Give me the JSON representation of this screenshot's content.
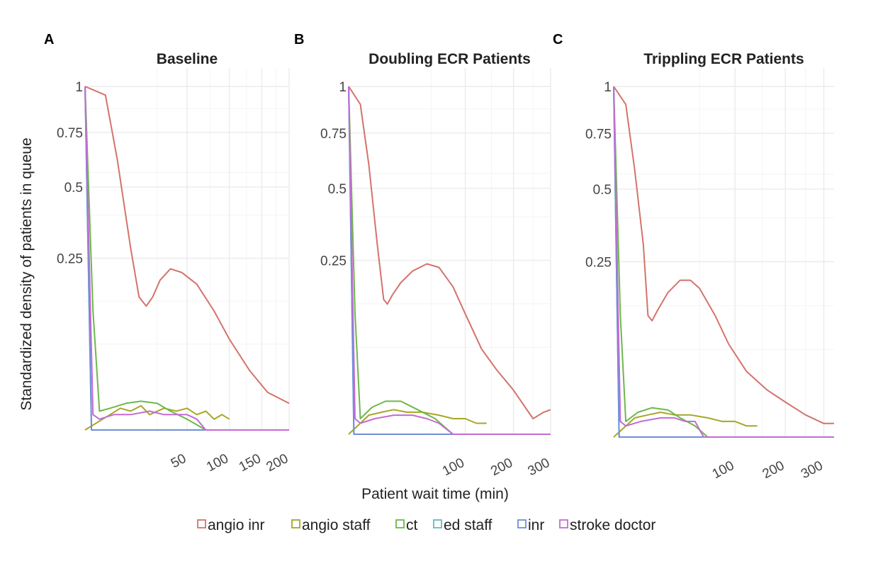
{
  "figure": {
    "xlabel": "Patient wait time (min)",
    "ylabel": "Standardized density of patients in queue"
  },
  "legend": [
    {
      "name": "angio inr",
      "color": "#d4736b"
    },
    {
      "name": "angio staff",
      "color": "#a8a626"
    },
    {
      "name": "ct",
      "color": "#6cb84a"
    },
    {
      "name": "ed staff",
      "color": "#62bcbd"
    },
    {
      "name": "inr",
      "color": "#6e8fd8"
    },
    {
      "name": "stroke doctor",
      "color": "#c46bd4"
    }
  ],
  "chart_data": [
    {
      "type": "line",
      "letter": "A",
      "title": "Baseline",
      "x_scale": "sqrt",
      "xlim": [
        0,
        200
      ],
      "xticks": [
        50,
        100,
        150,
        200
      ],
      "xtick_labels": [
        "50",
        "100",
        "150",
        "200"
      ],
      "y_scale": "sqrt",
      "ylim": [
        0,
        1
      ],
      "yticks": [
        0.25,
        0.5,
        0.75,
        1
      ],
      "ytick_labels": [
        "0.25",
        "0.5",
        "0.75",
        "1"
      ],
      "grid": true,
      "series": [
        {
          "name": "angio inr",
          "x": [
            0,
            2,
            5,
            10,
            14,
            18,
            22,
            27,
            35,
            45,
            60,
            80,
            100,
            130,
            160,
            200
          ],
          "y": [
            1,
            0.95,
            0.62,
            0.28,
            0.15,
            0.13,
            0.15,
            0.19,
            0.22,
            0.21,
            0.18,
            0.12,
            0.07,
            0.03,
            0.012,
            0.006
          ]
        },
        {
          "name": "angio staff",
          "x": [
            0,
            3,
            6,
            10,
            15,
            20,
            30,
            40,
            50,
            60,
            70,
            80,
            90,
            100
          ],
          "y": [
            0,
            0.002,
            0.004,
            0.003,
            0.005,
            0.002,
            0.004,
            0.003,
            0.004,
            0.002,
            0.003,
            0.001,
            0.002,
            0.001
          ]
        },
        {
          "name": "ct",
          "x": [
            0,
            0.3,
            1,
            3,
            8,
            15,
            25,
            35,
            50,
            70,
            100,
            200
          ],
          "y": [
            1,
            0.12,
            0.003,
            0.004,
            0.006,
            0.007,
            0.006,
            0.003,
            0.001,
            0,
            0,
            0
          ]
        },
        {
          "name": "ed staff",
          "x": [
            0,
            0.2,
            1,
            200
          ],
          "y": [
            1,
            0,
            0,
            0
          ]
        },
        {
          "name": "inr",
          "x": [
            0,
            0.2,
            1,
            200
          ],
          "y": [
            1,
            0,
            0,
            0
          ]
        },
        {
          "name": "stroke doctor",
          "x": [
            0,
            0.3,
            1,
            4,
            10,
            20,
            30,
            40,
            50,
            60,
            70,
            200
          ],
          "y": [
            1,
            0.002,
            0.001,
            0.002,
            0.002,
            0.003,
            0.002,
            0.002,
            0.002,
            0.001,
            0,
            0
          ]
        }
      ]
    },
    {
      "type": "line",
      "letter": "B",
      "title": "Doubling ECR Patients",
      "x_scale": "sqrt",
      "xlim": [
        0,
        300
      ],
      "xticks": [
        100,
        200,
        300
      ],
      "xtick_labels": [
        "100",
        "200",
        "300"
      ],
      "y_scale": "sqrt",
      "ylim": [
        0,
        1
      ],
      "yticks": [
        0.25,
        0.5,
        0.75,
        1
      ],
      "ytick_labels": [
        "0.25",
        "0.5",
        "0.75",
        "1"
      ],
      "grid": true,
      "series": [
        {
          "name": "angio inr",
          "x": [
            0,
            1,
            3,
            6,
            9,
            11,
            14,
            20,
            30,
            45,
            60,
            80,
            100,
            130,
            160,
            200,
            250,
            280,
            300
          ],
          "y": [
            1,
            0.9,
            0.6,
            0.3,
            0.15,
            0.14,
            0.16,
            0.19,
            0.22,
            0.24,
            0.23,
            0.18,
            0.12,
            0.06,
            0.035,
            0.016,
            0.002,
            0.004,
            0.005
          ]
        },
        {
          "name": "angio staff",
          "x": [
            0,
            3,
            8,
            15,
            25,
            40,
            60,
            80,
            100,
            120,
            140
          ],
          "y": [
            0,
            0.003,
            0.004,
            0.005,
            0.004,
            0.004,
            0.003,
            0.002,
            0.002,
            0.001,
            0.001
          ]
        },
        {
          "name": "ct",
          "x": [
            0,
            0.3,
            1,
            4,
            10,
            20,
            35,
            55,
            80,
            300
          ],
          "y": [
            1,
            0.12,
            0.002,
            0.006,
            0.009,
            0.009,
            0.005,
            0.002,
            0,
            0
          ]
        },
        {
          "name": "ed staff",
          "x": [
            0,
            0.2,
            1,
            300
          ],
          "y": [
            1,
            0,
            0,
            0
          ]
        },
        {
          "name": "inr",
          "x": [
            0,
            0.2,
            1,
            300
          ],
          "y": [
            1,
            0,
            0,
            0
          ]
        },
        {
          "name": "stroke doctor",
          "x": [
            0,
            0.3,
            1,
            5,
            15,
            30,
            45,
            60,
            80,
            300
          ],
          "y": [
            1,
            0.002,
            0.001,
            0.002,
            0.003,
            0.003,
            0.002,
            0.001,
            0,
            0
          ]
        }
      ]
    },
    {
      "type": "line",
      "letter": "C",
      "title": "Trippling ECR Patients",
      "x_scale": "sqrt",
      "xlim": [
        0,
        330
      ],
      "xticks": [
        100,
        200,
        300
      ],
      "xtick_labels": [
        "100",
        "200",
        "300"
      ],
      "y_scale": "sqrt",
      "ylim": [
        0,
        1
      ],
      "yticks": [
        0.25,
        0.5,
        0.75,
        1
      ],
      "ytick_labels": [
        "0.25",
        "0.5",
        "0.75",
        "1"
      ],
      "grid": true,
      "series": [
        {
          "name": "angio inr",
          "x": [
            0,
            1,
            3,
            6,
            8,
            10,
            13,
            20,
            30,
            40,
            50,
            70,
            90,
            120,
            160,
            200,
            250,
            300,
            330
          ],
          "y": [
            1,
            0.9,
            0.58,
            0.3,
            0.12,
            0.11,
            0.13,
            0.17,
            0.2,
            0.2,
            0.18,
            0.12,
            0.07,
            0.035,
            0.018,
            0.01,
            0.004,
            0.0015,
            0.0015
          ]
        },
        {
          "name": "angio staff",
          "x": [
            0,
            3,
            8,
            15,
            25,
            40,
            60,
            80,
            100,
            120,
            140
          ],
          "y": [
            0,
            0.003,
            0.004,
            0.005,
            0.004,
            0.004,
            0.003,
            0.002,
            0.002,
            0.001,
            0.001
          ]
        },
        {
          "name": "ct",
          "x": [
            0,
            0.3,
            1,
            4,
            10,
            20,
            30,
            45,
            60,
            330
          ],
          "y": [
            1,
            0.12,
            0.002,
            0.005,
            0.007,
            0.006,
            0.003,
            0.001,
            0,
            0
          ]
        },
        {
          "name": "ed staff",
          "x": [
            0,
            0.2,
            1,
            330
          ],
          "y": [
            1,
            0,
            0,
            0
          ]
        },
        {
          "name": "inr",
          "x": [
            0,
            0.2,
            1,
            330
          ],
          "y": [
            1,
            0,
            0,
            0
          ]
        },
        {
          "name": "stroke doctor",
          "x": [
            0,
            0.3,
            1,
            5,
            15,
            25,
            35,
            45,
            55,
            330
          ],
          "y": [
            1,
            0.002,
            0.001,
            0.002,
            0.003,
            0.003,
            0.002,
            0.002,
            0,
            0
          ]
        }
      ]
    }
  ]
}
